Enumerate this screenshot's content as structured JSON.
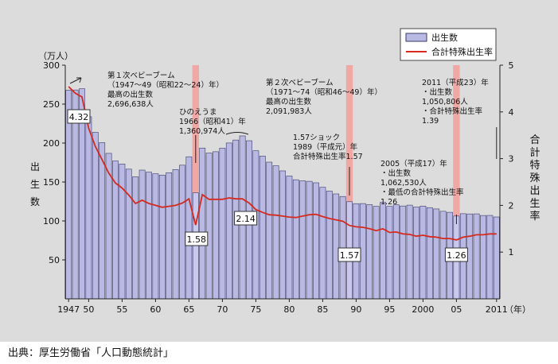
{
  "source": "出典：厚生労働省「人口動態統計」",
  "colors": {
    "bar": "#b9b9e3",
    "bar_stroke": "#3a3a6a",
    "line": "#d62a1e",
    "highlight": "#f0a8a4",
    "background": "#dcdcdc"
  },
  "chart_data": {
    "type": "bar",
    "left_unit": "（万人）",
    "left_label": [
      "出",
      "生",
      "数"
    ],
    "right_label": [
      "合",
      "計",
      "特",
      "殊",
      "出",
      "生",
      "率"
    ],
    "x_unit": "（年）",
    "ylim_left": [
      0,
      300
    ],
    "yticks_left": [
      50,
      100,
      150,
      200,
      250,
      300
    ],
    "ylim_right": [
      0,
      5
    ],
    "yticks_right": [
      1,
      2,
      3,
      4,
      5
    ],
    "xticks": [
      {
        "year": 1947,
        "label": "1947"
      },
      {
        "year": 1950,
        "label": "50"
      },
      {
        "year": 1955,
        "label": "55"
      },
      {
        "year": 1960,
        "label": "60"
      },
      {
        "year": 1965,
        "label": "65"
      },
      {
        "year": 1970,
        "label": "70"
      },
      {
        "year": 1975,
        "label": "75"
      },
      {
        "year": 1980,
        "label": "80"
      },
      {
        "year": 1985,
        "label": "85"
      },
      {
        "year": 1990,
        "label": "90"
      },
      {
        "year": 1995,
        "label": "95"
      },
      {
        "year": 2000,
        "label": "2000"
      },
      {
        "year": 2005,
        "label": "05"
      },
      {
        "year": 2011,
        "label": "2011"
      }
    ],
    "series": [
      {
        "name": "出生数",
        "type": "bar",
        "x": [
          1947,
          1948,
          1949,
          1950,
          1951,
          1952,
          1953,
          1954,
          1955,
          1956,
          1957,
          1958,
          1959,
          1960,
          1961,
          1962,
          1963,
          1964,
          1965,
          1966,
          1967,
          1968,
          1969,
          1970,
          1971,
          1972,
          1973,
          1974,
          1975,
          1976,
          1977,
          1978,
          1979,
          1980,
          1981,
          1982,
          1983,
          1984,
          1985,
          1986,
          1987,
          1988,
          1989,
          1990,
          1991,
          1992,
          1993,
          1994,
          1995,
          1996,
          1997,
          1998,
          1999,
          2000,
          2001,
          2002,
          2003,
          2004,
          2005,
          2006,
          2007,
          2008,
          2009,
          2010,
          2011
        ],
        "values": [
          267.9,
          268.2,
          269.7,
          233.8,
          213.8,
          200.5,
          186.8,
          177.0,
          173.1,
          166.5,
          156.7,
          165.3,
          162.6,
          160.6,
          158.9,
          161.9,
          166.0,
          171.6,
          182.4,
          136.1,
          193.6,
          187.2,
          188.9,
          193.4,
          200.1,
          203.9,
          209.2,
          203.0,
          190.1,
          183.3,
          175.5,
          170.9,
          164.3,
          157.7,
          152.9,
          151.5,
          150.9,
          149.0,
          143.2,
          138.3,
          134.7,
          131.4,
          124.7,
          122.2,
          122.3,
          120.9,
          118.8,
          123.8,
          118.7,
          120.7,
          119.2,
          120.3,
          117.8,
          119.1,
          117.1,
          115.4,
          112.4,
          111.1,
          106.3,
          109.3,
          109.0,
          109.1,
          107.0,
          107.1,
          105.1
        ]
      },
      {
        "name": "合計特殊出生率",
        "type": "line",
        "x": [
          1947,
          1948,
          1949,
          1950,
          1951,
          1952,
          1953,
          1954,
          1955,
          1956,
          1957,
          1958,
          1959,
          1960,
          1961,
          1962,
          1963,
          1964,
          1965,
          1966,
          1967,
          1968,
          1969,
          1970,
          1971,
          1972,
          1973,
          1974,
          1975,
          1976,
          1977,
          1978,
          1979,
          1980,
          1981,
          1982,
          1983,
          1984,
          1985,
          1986,
          1987,
          1988,
          1989,
          1990,
          1991,
          1992,
          1993,
          1994,
          1995,
          1996,
          1997,
          1998,
          1999,
          2000,
          2001,
          2002,
          2003,
          2004,
          2005,
          2006,
          2007,
          2008,
          2009,
          2010,
          2011
        ],
        "values": [
          4.54,
          4.4,
          4.32,
          3.65,
          3.26,
          2.98,
          2.69,
          2.48,
          2.37,
          2.22,
          2.04,
          2.11,
          2.04,
          2.0,
          1.96,
          1.98,
          2.0,
          2.05,
          2.14,
          1.58,
          2.23,
          2.13,
          2.13,
          2.13,
          2.16,
          2.14,
          2.14,
          2.05,
          1.91,
          1.85,
          1.8,
          1.79,
          1.77,
          1.75,
          1.74,
          1.77,
          1.8,
          1.81,
          1.76,
          1.72,
          1.69,
          1.66,
          1.57,
          1.54,
          1.53,
          1.5,
          1.46,
          1.5,
          1.42,
          1.43,
          1.39,
          1.38,
          1.34,
          1.36,
          1.33,
          1.32,
          1.29,
          1.29,
          1.26,
          1.32,
          1.34,
          1.37,
          1.37,
          1.39,
          1.39
        ]
      }
    ],
    "highlight_years": [
      1966,
      1989,
      2005
    ],
    "value_labels": [
      {
        "year": 1949,
        "text": "4.32"
      },
      {
        "year": 1966,
        "text": "1.58"
      },
      {
        "year": 1973,
        "text": "2.14"
      },
      {
        "year": 1989,
        "text": "1.57"
      },
      {
        "year": 2005,
        "text": "1.26"
      }
    ],
    "annotations": [
      {
        "lines": [
          "第１次ベビーブーム",
          "（1947～49（昭和22～24）年）",
          "最高の出生数",
          "2,696,638人"
        ]
      },
      {
        "lines": [
          "ひのえうま",
          "1966（昭和41）年",
          "1,360,974人"
        ]
      },
      {
        "lines": [
          "第２次ベビーブーム",
          "（1971～74（昭和46～49）年）",
          "最高の出生数",
          "2,091,983人"
        ]
      },
      {
        "lines": [
          "1.57ショック",
          "1989（平成元）年",
          "合計特殊出生率1.57"
        ]
      },
      {
        "lines": [
          "2005（平成17）年",
          "・出生数",
          "1,062,530人",
          "・最低の合計特殊出生率",
          "1.26"
        ]
      },
      {
        "lines": [
          "2011（平成23）年",
          "・出生数",
          "1,050,806人",
          "・合計特殊出生率",
          "1.39"
        ]
      }
    ]
  }
}
